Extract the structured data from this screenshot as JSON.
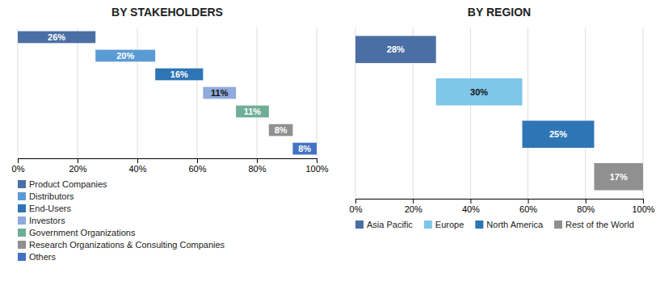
{
  "chart_data": [
    {
      "type": "waterfall",
      "title": "BY STAKEHOLDERS",
      "orientation": "horizontal",
      "series": [
        {
          "name": "Product Companies",
          "color": "#4a6fa5",
          "values": [
            26
          ],
          "value_labels": [
            "26%"
          ]
        },
        {
          "name": "Distributors",
          "color": "#5b9bd5",
          "values": [
            20
          ],
          "value_labels": [
            "20%"
          ]
        },
        {
          "name": "End-Users",
          "color": "#2e75b6",
          "values": [
            16
          ],
          "value_labels": [
            "16%"
          ]
        },
        {
          "name": "Investors",
          "color": "#8faadc",
          "values": [
            11
          ],
          "value_labels": [
            "11%"
          ]
        },
        {
          "name": "Government Organizations",
          "color": "#70ad98",
          "values": [
            11
          ],
          "value_labels": [
            "11%"
          ]
        },
        {
          "name": "Research Organizations & Consulting Companies",
          "color": "#909090",
          "values": [
            8
          ],
          "value_labels": [
            "8%"
          ]
        },
        {
          "name": "Others",
          "color": "#4472c4",
          "values": [
            8
          ],
          "value_labels": [
            "8%"
          ]
        }
      ],
      "xlim": [
        0,
        100
      ],
      "xticks": [
        {
          "value": 0,
          "label": "0%"
        },
        {
          "value": 20,
          "label": "20%"
        },
        {
          "value": 40,
          "label": "40%"
        },
        {
          "value": 60,
          "label": "60%"
        },
        {
          "value": 80,
          "label": "80%"
        },
        {
          "value": 100,
          "label": "100%"
        }
      ],
      "grid": true,
      "data_labels": true,
      "tick_labels": "x",
      "legend": "bottom"
    },
    {
      "type": "waterfall",
      "title": "BY REGION",
      "orientation": "horizontal",
      "series": [
        {
          "name": "Asia Pacific",
          "color": "#4a6fa5",
          "values": [
            28
          ],
          "value_labels": [
            "28%"
          ]
        },
        {
          "name": "Europe",
          "color": "#7fc7e8",
          "values": [
            30
          ],
          "value_labels": [
            "30%"
          ]
        },
        {
          "name": "North America",
          "color": "#2e75b6",
          "values": [
            25
          ],
          "value_labels": [
            "25%"
          ]
        },
        {
          "name": "Rest of the World",
          "color": "#909090",
          "values": [
            17
          ],
          "value_labels": [
            "17%"
          ]
        }
      ],
      "xlim": [
        0,
        100
      ],
      "xticks": [
        {
          "value": 0,
          "label": "0%"
        },
        {
          "value": 20,
          "label": "20%"
        },
        {
          "value": 40,
          "label": "40%"
        },
        {
          "value": 60,
          "label": "60%"
        },
        {
          "value": 80,
          "label": "80%"
        },
        {
          "value": 100,
          "label": "100%"
        }
      ],
      "grid": true,
      "data_labels": true,
      "tick_labels": "x",
      "legend": "bottom"
    }
  ]
}
